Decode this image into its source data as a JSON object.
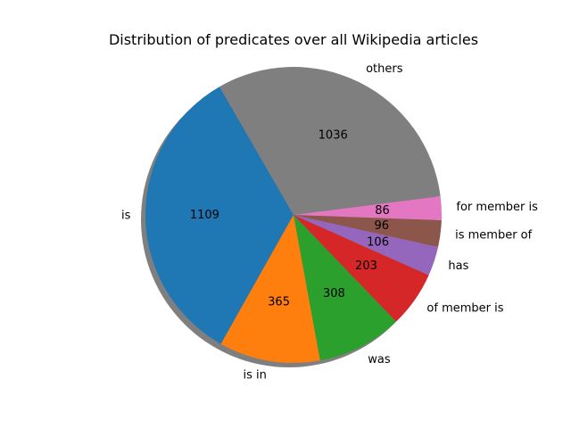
{
  "chart_data": {
    "type": "pie",
    "title": "Distribution of predicates over all Wikipedia articles",
    "categories": [
      "is",
      "is in",
      "was",
      "of member is",
      "has",
      "is member of",
      "for member is",
      "others"
    ],
    "values": [
      1109,
      365,
      308,
      203,
      106,
      96,
      86,
      1036
    ],
    "colors": [
      "#1f77b4",
      "#ff7f0e",
      "#2ca02c",
      "#d62728",
      "#9467bd",
      "#8c564b",
      "#e377c2",
      "#7f7f7f"
    ],
    "start_angle_deg": 120,
    "shadow": true
  }
}
